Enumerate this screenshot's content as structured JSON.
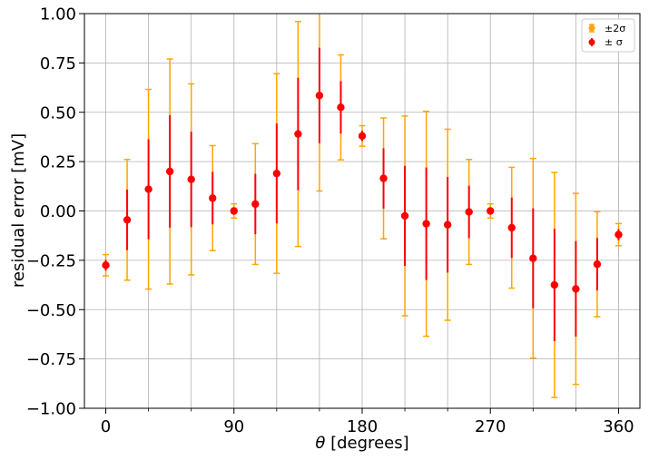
{
  "chart_data": {
    "type": "scatter",
    "xlabel_var": "θ",
    "xlabel_unit": " [degrees]",
    "ylabel": "residual error [mV]",
    "xlim": [
      -15,
      375
    ],
    "ylim": [
      -1.0,
      1.0
    ],
    "xticks_major": [
      0,
      90,
      180,
      270,
      360
    ],
    "xtick_labels": [
      "0",
      "90",
      "180",
      "270",
      "360"
    ],
    "xticks_minor": [
      30,
      60,
      120,
      150,
      210,
      240,
      300,
      330
    ],
    "yticks": [
      -1.0,
      -0.75,
      -0.5,
      -0.25,
      0.0,
      0.25,
      0.5,
      0.75,
      1.0
    ],
    "ytick_labels": [
      "−1.00",
      "−0.75",
      "−0.50",
      "−0.25",
      "0.00",
      "0.25",
      "0.50",
      "0.75",
      "1.00"
    ],
    "grid": true,
    "legend_position": "top-right",
    "legend": [
      {
        "label": "±2σ",
        "color": "#ffa500"
      },
      {
        "label": "± σ",
        "color": "#ff0000"
      }
    ],
    "x": [
      0,
      15,
      30,
      45,
      60,
      75,
      90,
      105,
      120,
      135,
      150,
      165,
      180,
      195,
      210,
      225,
      240,
      255,
      270,
      285,
      300,
      315,
      330,
      345,
      360
    ],
    "y": [
      -0.275,
      -0.045,
      0.11,
      0.2,
      0.16,
      0.065,
      0.0,
      0.035,
      0.19,
      0.39,
      0.585,
      0.525,
      0.38,
      0.165,
      -0.025,
      -0.065,
      -0.07,
      -0.005,
      0.0,
      -0.085,
      -0.24,
      -0.375,
      -0.395,
      -0.27,
      -0.12
    ],
    "sigma": [
      0.027,
      0.153,
      0.253,
      0.285,
      0.242,
      0.133,
      0.018,
      0.153,
      0.253,
      0.285,
      0.242,
      0.133,
      0.026,
      0.153,
      0.253,
      0.285,
      0.242,
      0.133,
      0.018,
      0.153,
      0.253,
      0.285,
      0.242,
      0.133,
      0.028
    ],
    "colors": {
      "sigma": "#ff0000",
      "two_sigma": "#ffa500",
      "marker": "#ff0000",
      "grid": "#b0b0b0"
    }
  }
}
